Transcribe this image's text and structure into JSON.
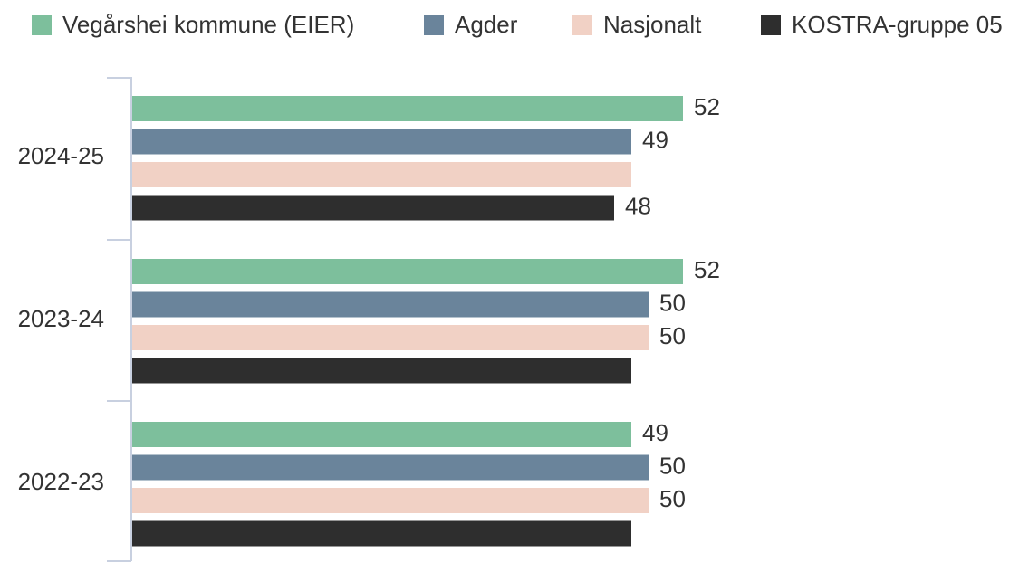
{
  "chart_data": {
    "type": "hbar",
    "categories": [
      "2024-25",
      "2023-24",
      "2022-23"
    ],
    "series": [
      {
        "name": "Vegårshei kommune (EIER)",
        "color": "#7dbf9c",
        "values": [
          52,
          52,
          49
        ],
        "value_labels": [
          "52",
          "52",
          "49"
        ]
      },
      {
        "name": "Agder",
        "color": "#6a849b",
        "values": [
          49,
          50,
          50
        ],
        "value_labels": [
          "49",
          "50",
          "50"
        ]
      },
      {
        "name": "Nasjonalt",
        "color": "#f1d1c5",
        "values": [
          49,
          50,
          50
        ],
        "value_labels": [
          null,
          "50",
          "50"
        ]
      },
      {
        "name": "KOSTRA-gruppe 05",
        "color": "#2e2e2e",
        "values": [
          48,
          49,
          49
        ],
        "value_labels": [
          "48",
          null,
          null
        ]
      }
    ],
    "xlim": [
      20,
      70
    ]
  }
}
